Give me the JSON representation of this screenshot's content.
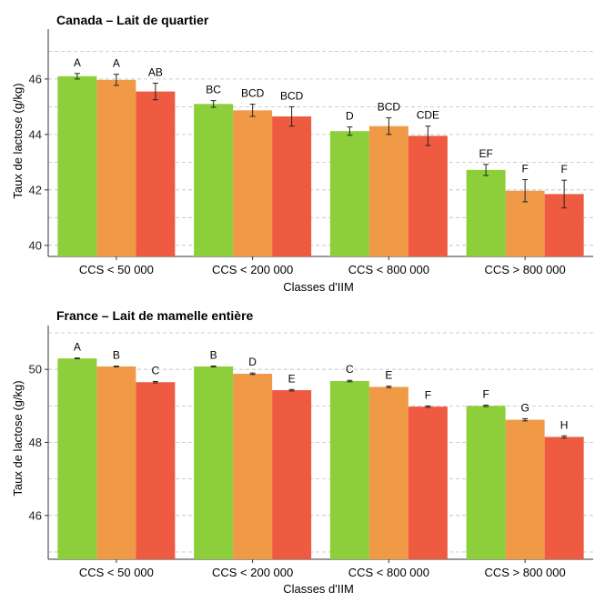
{
  "chart_data": [
    {
      "type": "bar",
      "title": "Canada – Lait de quartier",
      "xlabel": "Classes d'IIM",
      "ylabel": "Taux de lactose (g/kg)",
      "ylim": [
        39.6,
        47.8
      ],
      "yticks": [
        40,
        42,
        44,
        46
      ],
      "categories": [
        "CCS < 50 000",
        "CCS < 200 000",
        "CCS < 800 000",
        "CCS > 800 000"
      ],
      "grid": "horizontal dashed",
      "series": [
        {
          "color": "#8ccf3a",
          "values": [
            46.1,
            45.1,
            44.12,
            42.72
          ],
          "errors": [
            0.1,
            0.12,
            0.15,
            0.2
          ],
          "letters": [
            "A",
            "BC",
            "D",
            "EF"
          ]
        },
        {
          "color": "#f09a48",
          "values": [
            45.97,
            44.87,
            44.3,
            41.97
          ],
          "errors": [
            0.2,
            0.22,
            0.3,
            0.4
          ],
          "letters": [
            "A",
            "BCD",
            "BCD",
            "F"
          ]
        },
        {
          "color": "#ee5b40",
          "values": [
            45.55,
            44.65,
            43.95,
            41.85
          ],
          "errors": [
            0.3,
            0.35,
            0.35,
            0.5
          ],
          "letters": [
            "AB",
            "BCD",
            "CDE",
            "F"
          ]
        }
      ]
    },
    {
      "type": "bar",
      "title": "France – Lait de mamelle entière",
      "xlabel": "Classes d'IIM",
      "ylabel": "Taux de lactose (g/kg)",
      "ylim": [
        44.8,
        51.2
      ],
      "yticks": [
        46,
        48,
        50
      ],
      "categories": [
        "CCS < 50 000",
        "CCS < 200 000",
        "CCS < 800 000",
        "CCS > 800 000"
      ],
      "grid": "horizontal dashed",
      "series": [
        {
          "color": "#8ccf3a",
          "values": [
            50.3,
            50.08,
            49.68,
            49.0
          ],
          "errors": [
            0.01,
            0.01,
            0.02,
            0.02
          ],
          "letters": [
            "A",
            "B",
            "C",
            "F"
          ]
        },
        {
          "color": "#f09a48",
          "values": [
            50.08,
            49.88,
            49.52,
            48.62
          ],
          "errors": [
            0.01,
            0.02,
            0.02,
            0.03
          ],
          "letters": [
            "B",
            "D",
            "E",
            "G"
          ]
        },
        {
          "color": "#ee5b40",
          "values": [
            49.65,
            49.43,
            48.98,
            48.15
          ],
          "errors": [
            0.02,
            0.02,
            0.02,
            0.03
          ],
          "letters": [
            "C",
            "E",
            "F",
            "H"
          ]
        }
      ]
    }
  ]
}
